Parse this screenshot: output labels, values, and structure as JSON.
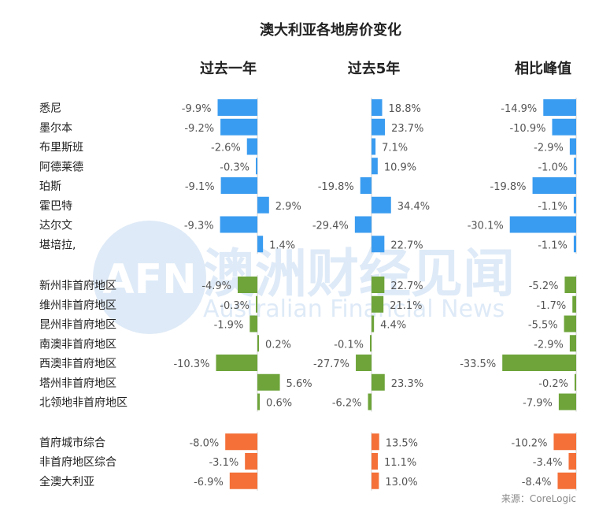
{
  "title": "澳大利亚各地房价变化",
  "source": "来源：CoreLogic",
  "watermark": {
    "logo": "AFN",
    "cn": "澳洲财经见闻",
    "en": "Australian Financial News"
  },
  "colors": {
    "city": "#3a9cf0",
    "regional": "#6ea43a",
    "aggregate": "#f47038",
    "axis": "#d0d0d0"
  },
  "chart_data": {
    "type": "bar",
    "orientation": "horizontal",
    "title": "澳大利亚各地房价变化",
    "columns": [
      {
        "name": "过去一年",
        "labels": [
          "-9.9%",
          "-9.2%",
          "-2.6%",
          "-0.3%",
          "-9.1%",
          "2.9%",
          "-9.3%",
          "1.4%",
          "-4.9%",
          "-0.3%",
          "-1.9%",
          "0.2%",
          "-10.3%",
          "5.6%",
          "0.6%",
          "-8.0%",
          "-3.1%",
          "-6.9%"
        ]
      },
      {
        "name": "过去5年",
        "labels": [
          "18.8%",
          "23.7%",
          "7.1%",
          "10.9%",
          "-19.8%",
          "34.4%",
          "-29.4%",
          "22.7%",
          "22.7%",
          "21.1%",
          "4.4%",
          "-0.1%",
          "-27.7%",
          "23.3%",
          "-6.2%",
          "13.5%",
          "11.1%",
          "13.0%"
        ]
      },
      {
        "name": "相比峰值",
        "labels": [
          "-14.9%",
          "-10.9%",
          "-2.9%",
          "-1.0%",
          "-19.8%",
          "-1.1%",
          "-30.1%",
          "-1.1%",
          "-5.2%",
          "-1.7%",
          "-5.5%",
          "-2.9%",
          "-33.5%",
          "-0.2%",
          "-7.9%",
          "-10.2%",
          "-3.4%",
          "-8.4%"
        ]
      }
    ],
    "rows": [
      {
        "name": "悉尼",
        "group": "city",
        "values": [
          -9.9,
          18.8,
          -14.9
        ]
      },
      {
        "name": "墨尔本",
        "group": "city",
        "values": [
          -9.2,
          23.7,
          -10.9
        ]
      },
      {
        "name": "布里斯班",
        "group": "city",
        "values": [
          -2.6,
          7.1,
          -2.9
        ]
      },
      {
        "name": "阿德莱德",
        "group": "city",
        "values": [
          -0.3,
          10.9,
          -1.0
        ]
      },
      {
        "name": "珀斯",
        "group": "city",
        "values": [
          -9.1,
          -19.8,
          -19.8
        ]
      },
      {
        "name": "霍巴特",
        "group": "city",
        "values": [
          2.9,
          34.4,
          -1.1
        ]
      },
      {
        "name": "达尔文",
        "group": "city",
        "values": [
          -9.3,
          -29.4,
          -30.1
        ]
      },
      {
        "name": "堪培拉,",
        "group": "city",
        "values": [
          1.4,
          22.7,
          -1.1
        ]
      },
      {
        "name": "新州非首府地区",
        "group": "regional",
        "values": [
          -4.9,
          22.7,
          -5.2
        ]
      },
      {
        "name": "维州非首府地区",
        "group": "regional",
        "values": [
          -0.3,
          21.1,
          -1.7
        ]
      },
      {
        "name": "昆州非首府地区",
        "group": "regional",
        "values": [
          -1.9,
          4.4,
          -5.5
        ]
      },
      {
        "name": "南澳非首府地区",
        "group": "regional",
        "values": [
          0.2,
          -0.1,
          -2.9
        ]
      },
      {
        "name": "西澳非首府地区",
        "group": "regional",
        "values": [
          -10.3,
          -27.7,
          -33.5
        ]
      },
      {
        "name": "塔州非首府地区",
        "group": "regional",
        "values": [
          5.6,
          23.3,
          -0.2
        ]
      },
      {
        "name": "北领地非首府地区",
        "group": "regional",
        "values": [
          0.6,
          -6.2,
          -7.9
        ]
      },
      {
        "name": "首府城市综合",
        "group": "aggregate",
        "values": [
          -8.0,
          13.5,
          -10.2
        ]
      },
      {
        "name": "非首府地区综合",
        "group": "aggregate",
        "values": [
          -3.1,
          11.1,
          -3.4
        ]
      },
      {
        "name": "全澳大利亚",
        "group": "aggregate",
        "values": [
          -6.9,
          13.0,
          -8.4
        ]
      }
    ]
  }
}
